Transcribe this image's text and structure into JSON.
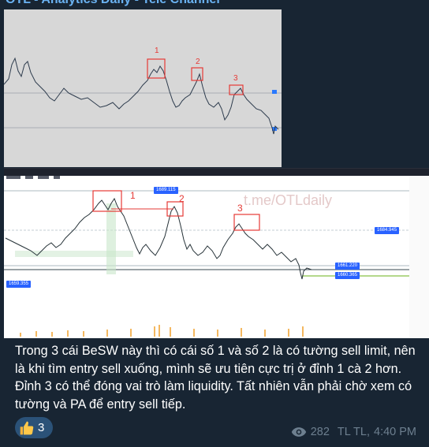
{
  "channel": {
    "title": "OTL - Analytics Daily - Tele Channel"
  },
  "chart_top": {
    "markers": [
      "1",
      "2",
      "3"
    ]
  },
  "chart_bottom": {
    "watermark": "t.me/OTLdaily",
    "markers": [
      "1",
      "2",
      "3"
    ],
    "price_tags": [
      "1689.115",
      "1684.945",
      "1661.220",
      "1660.365",
      "1659.355"
    ]
  },
  "message": {
    "text": "Trong 3 cái BeSW này thì có cái số 1 và số 2 là có tường sell limit, nên là khi tìm entry sell xuống, mình sẽ ưu tiên cực trị ở đỉnh 1 cà 2 hơn. Đỉnh 3 có thể đóng vai trò làm liquidity. Tất nhiên vẫn phải chờ xem có tường và PA để entry sell tiếp.",
    "reaction": {
      "icon": "thumbs-up-icon",
      "count": "3"
    },
    "views": "282",
    "author": "TL TL,",
    "time": "4:40 PM"
  },
  "colors": {
    "bubble": "#182533",
    "accent": "#6ab2f2",
    "reaction_bg": "#2b5278",
    "meta": "#6d7f8f",
    "marker": "#e53935"
  }
}
